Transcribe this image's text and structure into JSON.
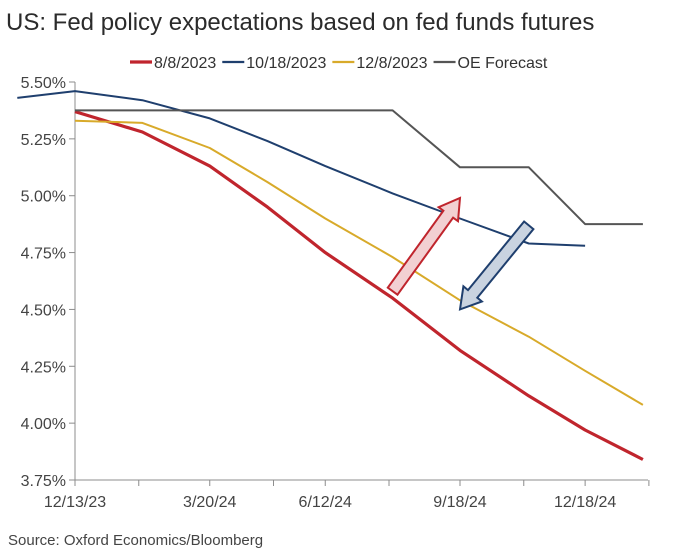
{
  "title": "US: Fed policy expectations based on fed funds futures",
  "source": "Source: Oxford Economics/Bloomberg",
  "chart_data": {
    "type": "line",
    "title": "US: Fed policy expectations based on fed funds futures",
    "xlabel": "",
    "ylabel": "",
    "x_ticks": [
      "12/13/23",
      "3/20/24",
      "6/12/24",
      "9/18/24",
      "12/18/24"
    ],
    "y_ticks": [
      "5.50%",
      "5.25%",
      "5.00%",
      "4.75%",
      "4.50%",
      "4.25%",
      "4.00%",
      "3.75%"
    ],
    "ylim": [
      3.75,
      5.5
    ],
    "grid": false,
    "legend_position": "top",
    "series": [
      {
        "name": "8/8/2023",
        "color": "#c0252d",
        "points": [
          [
            "12/13/23",
            5.37
          ],
          [
            "1/31/24",
            5.28
          ],
          [
            "3/20/24",
            5.13
          ],
          [
            "5/1/24",
            4.95
          ],
          [
            "6/12/24",
            4.75
          ],
          [
            "7/31/24",
            4.55
          ],
          [
            "9/18/24",
            4.32
          ],
          [
            "11/7/24",
            4.12
          ],
          [
            "12/18/24",
            3.97
          ],
          [
            "1/29/25",
            3.84
          ]
        ]
      },
      {
        "name": "10/18/2023",
        "color": "#1f3f6e",
        "points": [
          [
            "11/1/23",
            5.43
          ],
          [
            "12/13/23",
            5.46
          ],
          [
            "1/31/24",
            5.42
          ],
          [
            "3/20/24",
            5.34
          ],
          [
            "5/1/24",
            5.24
          ],
          [
            "6/12/24",
            5.13
          ],
          [
            "7/31/24",
            5.01
          ],
          [
            "9/18/24",
            4.9
          ],
          [
            "11/7/24",
            4.79
          ],
          [
            "12/18/24",
            4.78
          ]
        ]
      },
      {
        "name": "12/8/2023",
        "color": "#d8aa2a",
        "points": [
          [
            "12/13/23",
            5.33
          ],
          [
            "1/31/24",
            5.32
          ],
          [
            "3/20/24",
            5.21
          ],
          [
            "5/1/24",
            5.06
          ],
          [
            "6/12/24",
            4.9
          ],
          [
            "7/31/24",
            4.73
          ],
          [
            "9/18/24",
            4.54
          ],
          [
            "11/7/24",
            4.38
          ],
          [
            "12/18/24",
            4.23
          ],
          [
            "1/29/25",
            4.08
          ]
        ]
      },
      {
        "name": "OE Forecast",
        "color": "#555555",
        "points": [
          [
            "12/13/23",
            5.375
          ],
          [
            "1/31/24",
            5.375
          ],
          [
            "3/20/24",
            5.375
          ],
          [
            "5/1/24",
            5.375
          ],
          [
            "6/12/24",
            5.375
          ],
          [
            "7/31/24",
            5.375
          ],
          [
            "9/18/24",
            5.125
          ],
          [
            "11/7/24",
            5.125
          ],
          [
            "12/18/24",
            4.875
          ],
          [
            "1/29/25",
            4.875
          ]
        ]
      }
    ],
    "annotations": [
      {
        "kind": "arrow-up",
        "color": "#c0252d",
        "fill": "#f2d0d2",
        "from": [
          "7/31/24",
          4.58
        ],
        "to": [
          "9/18/24",
          4.99
        ]
      },
      {
        "kind": "arrow-down",
        "color": "#1f3f6e",
        "fill": "#c9d3e0",
        "from": [
          "11/7/24",
          4.87
        ],
        "to": [
          "9/18/24",
          4.5
        ]
      }
    ]
  }
}
